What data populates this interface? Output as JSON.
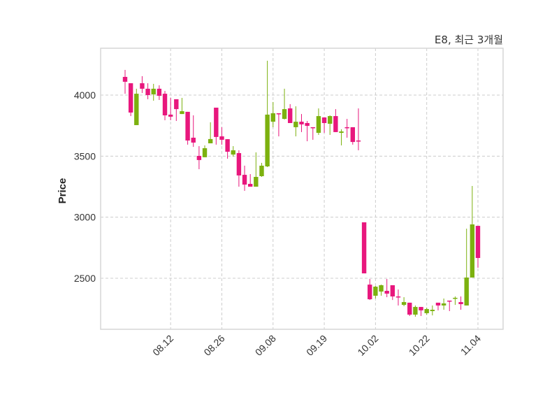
{
  "chart_data": {
    "type": "candlestick",
    "title": "E8, 최근 3개월",
    "xlabel": "",
    "ylabel": "Price",
    "ylim": [
      2080,
      4380
    ],
    "yticks": [
      2500,
      3000,
      3500,
      4000
    ],
    "xtick_labels": [
      {
        "index": 8,
        "label": "08.12"
      },
      {
        "index": 17,
        "label": "08.26"
      },
      {
        "index": 26,
        "label": "09.08"
      },
      {
        "index": 35,
        "label": "09.19"
      },
      {
        "index": 44,
        "label": "10.02"
      },
      {
        "index": 53,
        "label": "10.22"
      },
      {
        "index": 62,
        "label": "11.04"
      }
    ],
    "grid": true,
    "colors": {
      "up": "#7cb10f",
      "down": "#e8177d",
      "grid": "#cccccc",
      "frame": "#d6d6d6"
    },
    "ohlc": [
      [
        4149,
        4206,
        4011,
        4109
      ],
      [
        4097,
        4097,
        3828,
        3857
      ],
      [
        3754,
        4052,
        3754,
        4011
      ],
      [
        4097,
        4155,
        4017,
        4052
      ],
      [
        4052,
        4097,
        3966,
        4000
      ],
      [
        4006,
        4092,
        3954,
        4052
      ],
      [
        4052,
        4080,
        3960,
        3994
      ],
      [
        4011,
        4034,
        3794,
        3834
      ],
      [
        3840,
        3977,
        3794,
        3823
      ],
      [
        3966,
        3966,
        3788,
        3885
      ],
      [
        3845,
        3977,
        3845,
        3868
      ],
      [
        3863,
        3863,
        3594,
        3628
      ],
      [
        3651,
        3834,
        3576,
        3611
      ],
      [
        3502,
        3582,
        3393,
        3468
      ],
      [
        3491,
        3588,
        3491,
        3565
      ],
      [
        3605,
        3777,
        3605,
        3640
      ],
      [
        3897,
        3897,
        3594,
        3657
      ],
      [
        3662,
        3737,
        3594,
        3634
      ],
      [
        3639,
        3639,
        3479,
        3536
      ],
      [
        3513,
        3582,
        3496,
        3548
      ],
      [
        3525,
        3548,
        3250,
        3342
      ],
      [
        3347,
        3422,
        3216,
        3267
      ],
      [
        3273,
        3353,
        3250,
        3250
      ],
      [
        3250,
        3531,
        3250,
        3330
      ],
      [
        3336,
        3445,
        3330,
        3422
      ],
      [
        3416,
        4281,
        3410,
        3840
      ],
      [
        3782,
        3943,
        3737,
        3851
      ],
      [
        3851,
        3851,
        3662,
        3845
      ],
      [
        3805,
        4052,
        3800,
        3885
      ],
      [
        3891,
        3926,
        3771,
        3771
      ],
      [
        3737,
        3908,
        3662,
        3782
      ],
      [
        3782,
        3845,
        3697,
        3760
      ],
      [
        3771,
        3788,
        3622,
        3748
      ],
      [
        3737,
        3737,
        3634,
        3731
      ],
      [
        3691,
        3891,
        3674,
        3828
      ],
      [
        3817,
        3817,
        3691,
        3771
      ],
      [
        3765,
        3834,
        3674,
        3828
      ],
      [
        3828,
        3885,
        3697,
        3697
      ],
      [
        3691,
        3720,
        3588,
        3702
      ],
      [
        3737,
        3805,
        3651,
        3731
      ],
      [
        3737,
        3737,
        3594,
        3616
      ],
      [
        3628,
        3891,
        3548,
        3622
      ],
      [
        2958,
        2958,
        2540,
        2540
      ],
      [
        2448,
        2494,
        2322,
        2328
      ],
      [
        2357,
        2437,
        2334,
        2431
      ],
      [
        2391,
        2448,
        2357,
        2443
      ],
      [
        2397,
        2494,
        2345,
        2374
      ],
      [
        2443,
        2443,
        2322,
        2351
      ],
      [
        2351,
        2408,
        2277,
        2345
      ],
      [
        2282,
        2345,
        2271,
        2305
      ],
      [
        2300,
        2300,
        2191,
        2202
      ],
      [
        2202,
        2277,
        2185,
        2265
      ],
      [
        2265,
        2265,
        2191,
        2237
      ],
      [
        2214,
        2259,
        2202,
        2248
      ],
      [
        2231,
        2277,
        2196,
        2242
      ],
      [
        2300,
        2300,
        2237,
        2277
      ],
      [
        2277,
        2334,
        2242,
        2294
      ],
      [
        2317,
        2317,
        2231,
        2311
      ],
      [
        2334,
        2351,
        2282,
        2340
      ],
      [
        2305,
        2351,
        2242,
        2288
      ],
      [
        2277,
        2906,
        2277,
        2506
      ],
      [
        2506,
        3256,
        2506,
        2941
      ],
      [
        2929,
        2929,
        2586,
        2666
      ]
    ]
  }
}
